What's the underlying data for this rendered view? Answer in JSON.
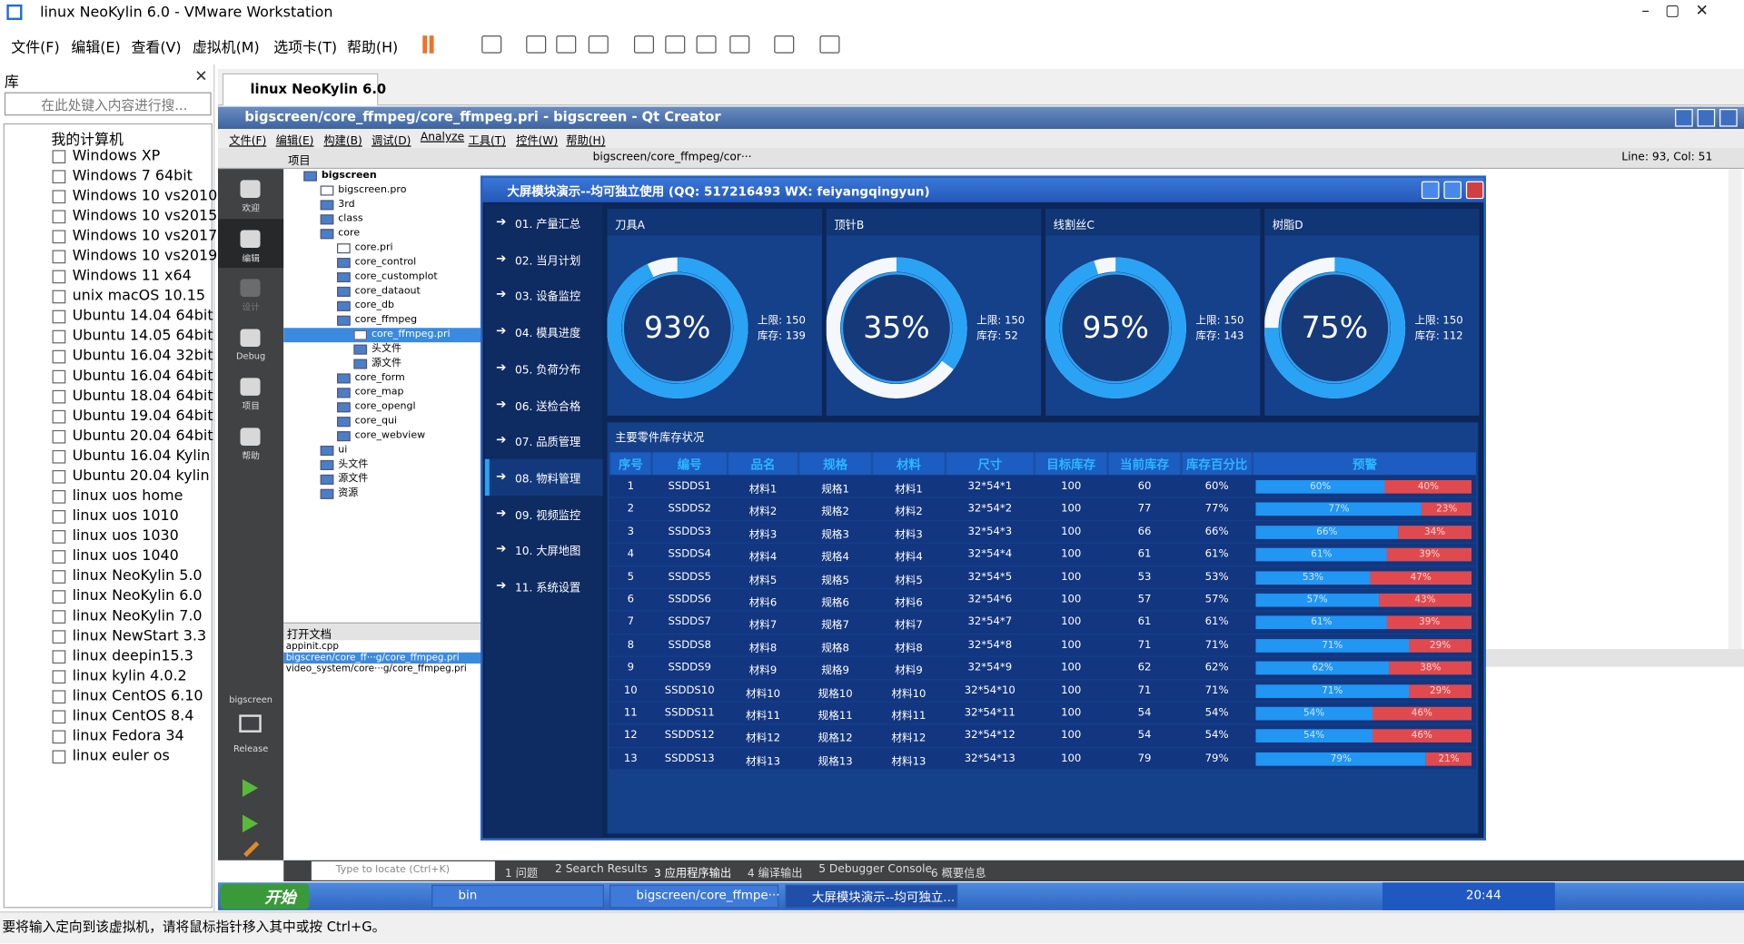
{
  "window": {
    "title": "linux NeoKylin 6.0 - VMware Workstation",
    "menu": [
      "文件(F)",
      "编辑(E)",
      "查看(V)",
      "虚拟机(M)",
      "选项卡(T)",
      "帮助(H)"
    ]
  },
  "library": {
    "title": "库",
    "search": "在此处键入内容进行搜...",
    "root": "我的计算机",
    "vms": [
      "Windows XP",
      "Windows 7 64bit",
      "Windows 10 vs2010",
      "Windows 10 vs2015",
      "Windows 10 vs2017",
      "Windows 10 vs2019",
      "Windows 11 x64",
      "unix macOS 10.15",
      "Ubuntu 14.04 64bit",
      "Ubuntu 14.05 64bit",
      "Ubuntu 16.04 32bit",
      "Ubuntu 16.04 64bit",
      "Ubuntu 18.04 64bit",
      "Ubuntu 19.04 64bit",
      "Ubuntu 20.04 64bit",
      "Ubuntu 16.04 Kylin",
      "Ubuntu 20.04 kylin",
      "linux uos home",
      "linux uos 1010",
      "linux uos 1030",
      "linux uos 1040",
      "linux NeoKylin 5.0",
      "linux NeoKylin 6.0",
      "linux NeoKylin 7.0",
      "linux NewStart 3.3",
      "linux deepin15.3",
      "linux kylin 4.0.2",
      "linux CentOS 6.10",
      "linux CentOS 8.4",
      "linux Fedora 34",
      "linux euler os"
    ]
  },
  "tab": "linux NeoKylin 6.0",
  "qt": {
    "title": "bigscreen/core_ffmpeg/core_ffmpeg.pri - bigscreen - Qt Creator",
    "menu": [
      "文件(F)",
      "编辑(E)",
      "构建(B)",
      "调试(D)",
      "Analyze",
      "工具(T)",
      "控件(W)",
      "帮助(H)"
    ],
    "modes": [
      "欢迎",
      "编辑",
      "设计",
      "Debug",
      "项目",
      "帮助"
    ],
    "kit": "bigscreen",
    "build": "Release",
    "pane": "项目",
    "tree": [
      {
        "label": "bigscreen",
        "depth": 0
      },
      {
        "label": "bigscreen.pro",
        "depth": 1
      },
      {
        "label": "3rd",
        "depth": 1
      },
      {
        "label": "class",
        "depth": 1
      },
      {
        "label": "core",
        "depth": 1
      },
      {
        "label": "core.pri",
        "depth": 2
      },
      {
        "label": "core_control",
        "depth": 2
      },
      {
        "label": "core_customplot",
        "depth": 2
      },
      {
        "label": "core_dataout",
        "depth": 2
      },
      {
        "label": "core_db",
        "depth": 2
      },
      {
        "label": "core_ffmpeg",
        "depth": 2
      },
      {
        "label": "core_ffmpeg.pri",
        "depth": 3,
        "selected": true
      },
      {
        "label": "头文件",
        "depth": 3
      },
      {
        "label": "源文件",
        "depth": 3
      },
      {
        "label": "core_form",
        "depth": 2
      },
      {
        "label": "core_map",
        "depth": 2
      },
      {
        "label": "core_opengl",
        "depth": 2
      },
      {
        "label": "core_qui",
        "depth": 2
      },
      {
        "label": "core_webview",
        "depth": 2
      },
      {
        "label": "ui",
        "depth": 1
      },
      {
        "label": "头文件",
        "depth": 1
      },
      {
        "label": "源文件",
        "depth": 1
      },
      {
        "label": "资源",
        "depth": 1
      }
    ],
    "open_docs_title": "打开文档",
    "open_docs": [
      "appinit.cpp",
      "bigscreen/core_ff···g/core_ffmpeg.pri",
      "video_system/core···g/core_ffmpeg.pri"
    ],
    "editor_file": "bigscreen/core_ffmpeg/cor···",
    "cursor": "Line: 93, Col: 51",
    "locate": "Type to locate (Ctrl+K)",
    "outputs": [
      "1 问题",
      "2 Search Results",
      "3 应用程序输出",
      "4 编译输出",
      "5 Debugger Console",
      "6 概要信息"
    ]
  },
  "app": {
    "title": "大屏模块演示--均可独立使用 (QQ: 517216493  WX: feiyangqingyun)",
    "nav": [
      "01. 产量汇总",
      "02. 当月计划",
      "03. 设备监控",
      "04. 模具进度",
      "05. 负荷分布",
      "06. 送检合格",
      "07. 品质管理",
      "08. 物料管理",
      "09. 视频监控",
      "10. 大屏地图",
      "11. 系统设置"
    ],
    "gauges": [
      {
        "name": "刀具A",
        "value": 93,
        "value_label": "93%",
        "limit": "上限: 150",
        "stock": "库存: 139"
      },
      {
        "name": "顶针B",
        "value": 35,
        "value_label": "35%",
        "limit": "上限: 150",
        "stock": "库存: 52"
      },
      {
        "name": "线割丝C",
        "value": 95,
        "value_label": "95%",
        "limit": "上限: 150",
        "stock": "库存: 143"
      },
      {
        "name": "树脂D",
        "value": 75,
        "value_label": "75%",
        "limit": "上限: 150",
        "stock": "库存: 112"
      }
    ],
    "table": {
      "title": "主要零件库存状况",
      "header": [
        "序号",
        "编号",
        "品名",
        "规格",
        "材料",
        "尺寸",
        "目标库存",
        "当前库存",
        "库存百分比",
        "预警"
      ],
      "rows": [
        {
          "cells": [
            1,
            "SSDDS1",
            "材料1",
            "规格1",
            "材料1",
            "32*54*1",
            100,
            60,
            "60%"
          ],
          "warn": [
            60,
            40
          ],
          "warn_labels": [
            "60%",
            "40%"
          ]
        },
        {
          "cells": [
            2,
            "SSDDS2",
            "材料2",
            "规格2",
            "材料2",
            "32*54*2",
            100,
            77,
            "77%"
          ],
          "warn": [
            77,
            23
          ],
          "warn_labels": [
            "77%",
            "23%"
          ]
        },
        {
          "cells": [
            3,
            "SSDDS3",
            "材料3",
            "规格3",
            "材料3",
            "32*54*3",
            100,
            66,
            "66%"
          ],
          "warn": [
            66,
            34
          ],
          "warn_labels": [
            "66%",
            "34%"
          ]
        },
        {
          "cells": [
            4,
            "SSDDS4",
            "材料4",
            "规格4",
            "材料4",
            "32*54*4",
            100,
            61,
            "61%"
          ],
          "warn": [
            61,
            39
          ],
          "warn_labels": [
            "61%",
            "39%"
          ]
        },
        {
          "cells": [
            5,
            "SSDDS5",
            "材料5",
            "规格5",
            "材料5",
            "32*54*5",
            100,
            53,
            "53%"
          ],
          "warn": [
            53,
            47
          ],
          "warn_labels": [
            "53%",
            "47%"
          ]
        },
        {
          "cells": [
            6,
            "SSDDS6",
            "材料6",
            "规格6",
            "材料6",
            "32*54*6",
            100,
            57,
            "57%"
          ],
          "warn": [
            57,
            43
          ],
          "warn_labels": [
            "57%",
            "43%"
          ]
        },
        {
          "cells": [
            7,
            "SSDDS7",
            "材料7",
            "规格7",
            "材料7",
            "32*54*7",
            100,
            61,
            "61%"
          ],
          "warn": [
            61,
            39
          ],
          "warn_labels": [
            "61%",
            "39%"
          ]
        },
        {
          "cells": [
            8,
            "SSDDS8",
            "材料8",
            "规格8",
            "材料8",
            "32*54*8",
            100,
            71,
            "71%"
          ],
          "warn": [
            71,
            29
          ],
          "warn_labels": [
            "71%",
            "29%"
          ]
        },
        {
          "cells": [
            9,
            "SSDDS9",
            "材料9",
            "规格9",
            "材料9",
            "32*54*9",
            100,
            62,
            "62%"
          ],
          "warn": [
            62,
            38
          ],
          "warn_labels": [
            "62%",
            "38%"
          ]
        },
        {
          "cells": [
            10,
            "SSDDS10",
            "材料10",
            "规格10",
            "材料10",
            "32*54*10",
            100,
            71,
            "71%"
          ],
          "warn": [
            71,
            29
          ],
          "warn_labels": [
            "71%",
            "29%"
          ]
        },
        {
          "cells": [
            11,
            "SSDDS11",
            "材料11",
            "规格11",
            "材料11",
            "32*54*11",
            100,
            54,
            "54%"
          ],
          "warn": [
            54,
            46
          ],
          "warn_labels": [
            "54%",
            "46%"
          ]
        },
        {
          "cells": [
            12,
            "SSDDS12",
            "材料12",
            "规格12",
            "材料12",
            "32*54*12",
            100,
            54,
            "54%"
          ],
          "warn": [
            54,
            46
          ],
          "warn_labels": [
            "54%",
            "46%"
          ]
        },
        {
          "cells": [
            13,
            "SSDDS13",
            "材料13",
            "规格13",
            "材料13",
            "32*54*13",
            100,
            79,
            "79%"
          ],
          "warn": [
            79,
            21
          ],
          "warn_labels": [
            "79%",
            "21%"
          ]
        }
      ]
    }
  },
  "taskbar": {
    "start": "开始",
    "items": [
      "bin",
      "bigscreen/core_ffmpe···",
      "大屏模块演示--均可独立..."
    ],
    "clock": "20:44"
  },
  "status": "要将输入定向到该虚拟机，请将鼠标指针移入其中或按 Ctrl+G。"
}
